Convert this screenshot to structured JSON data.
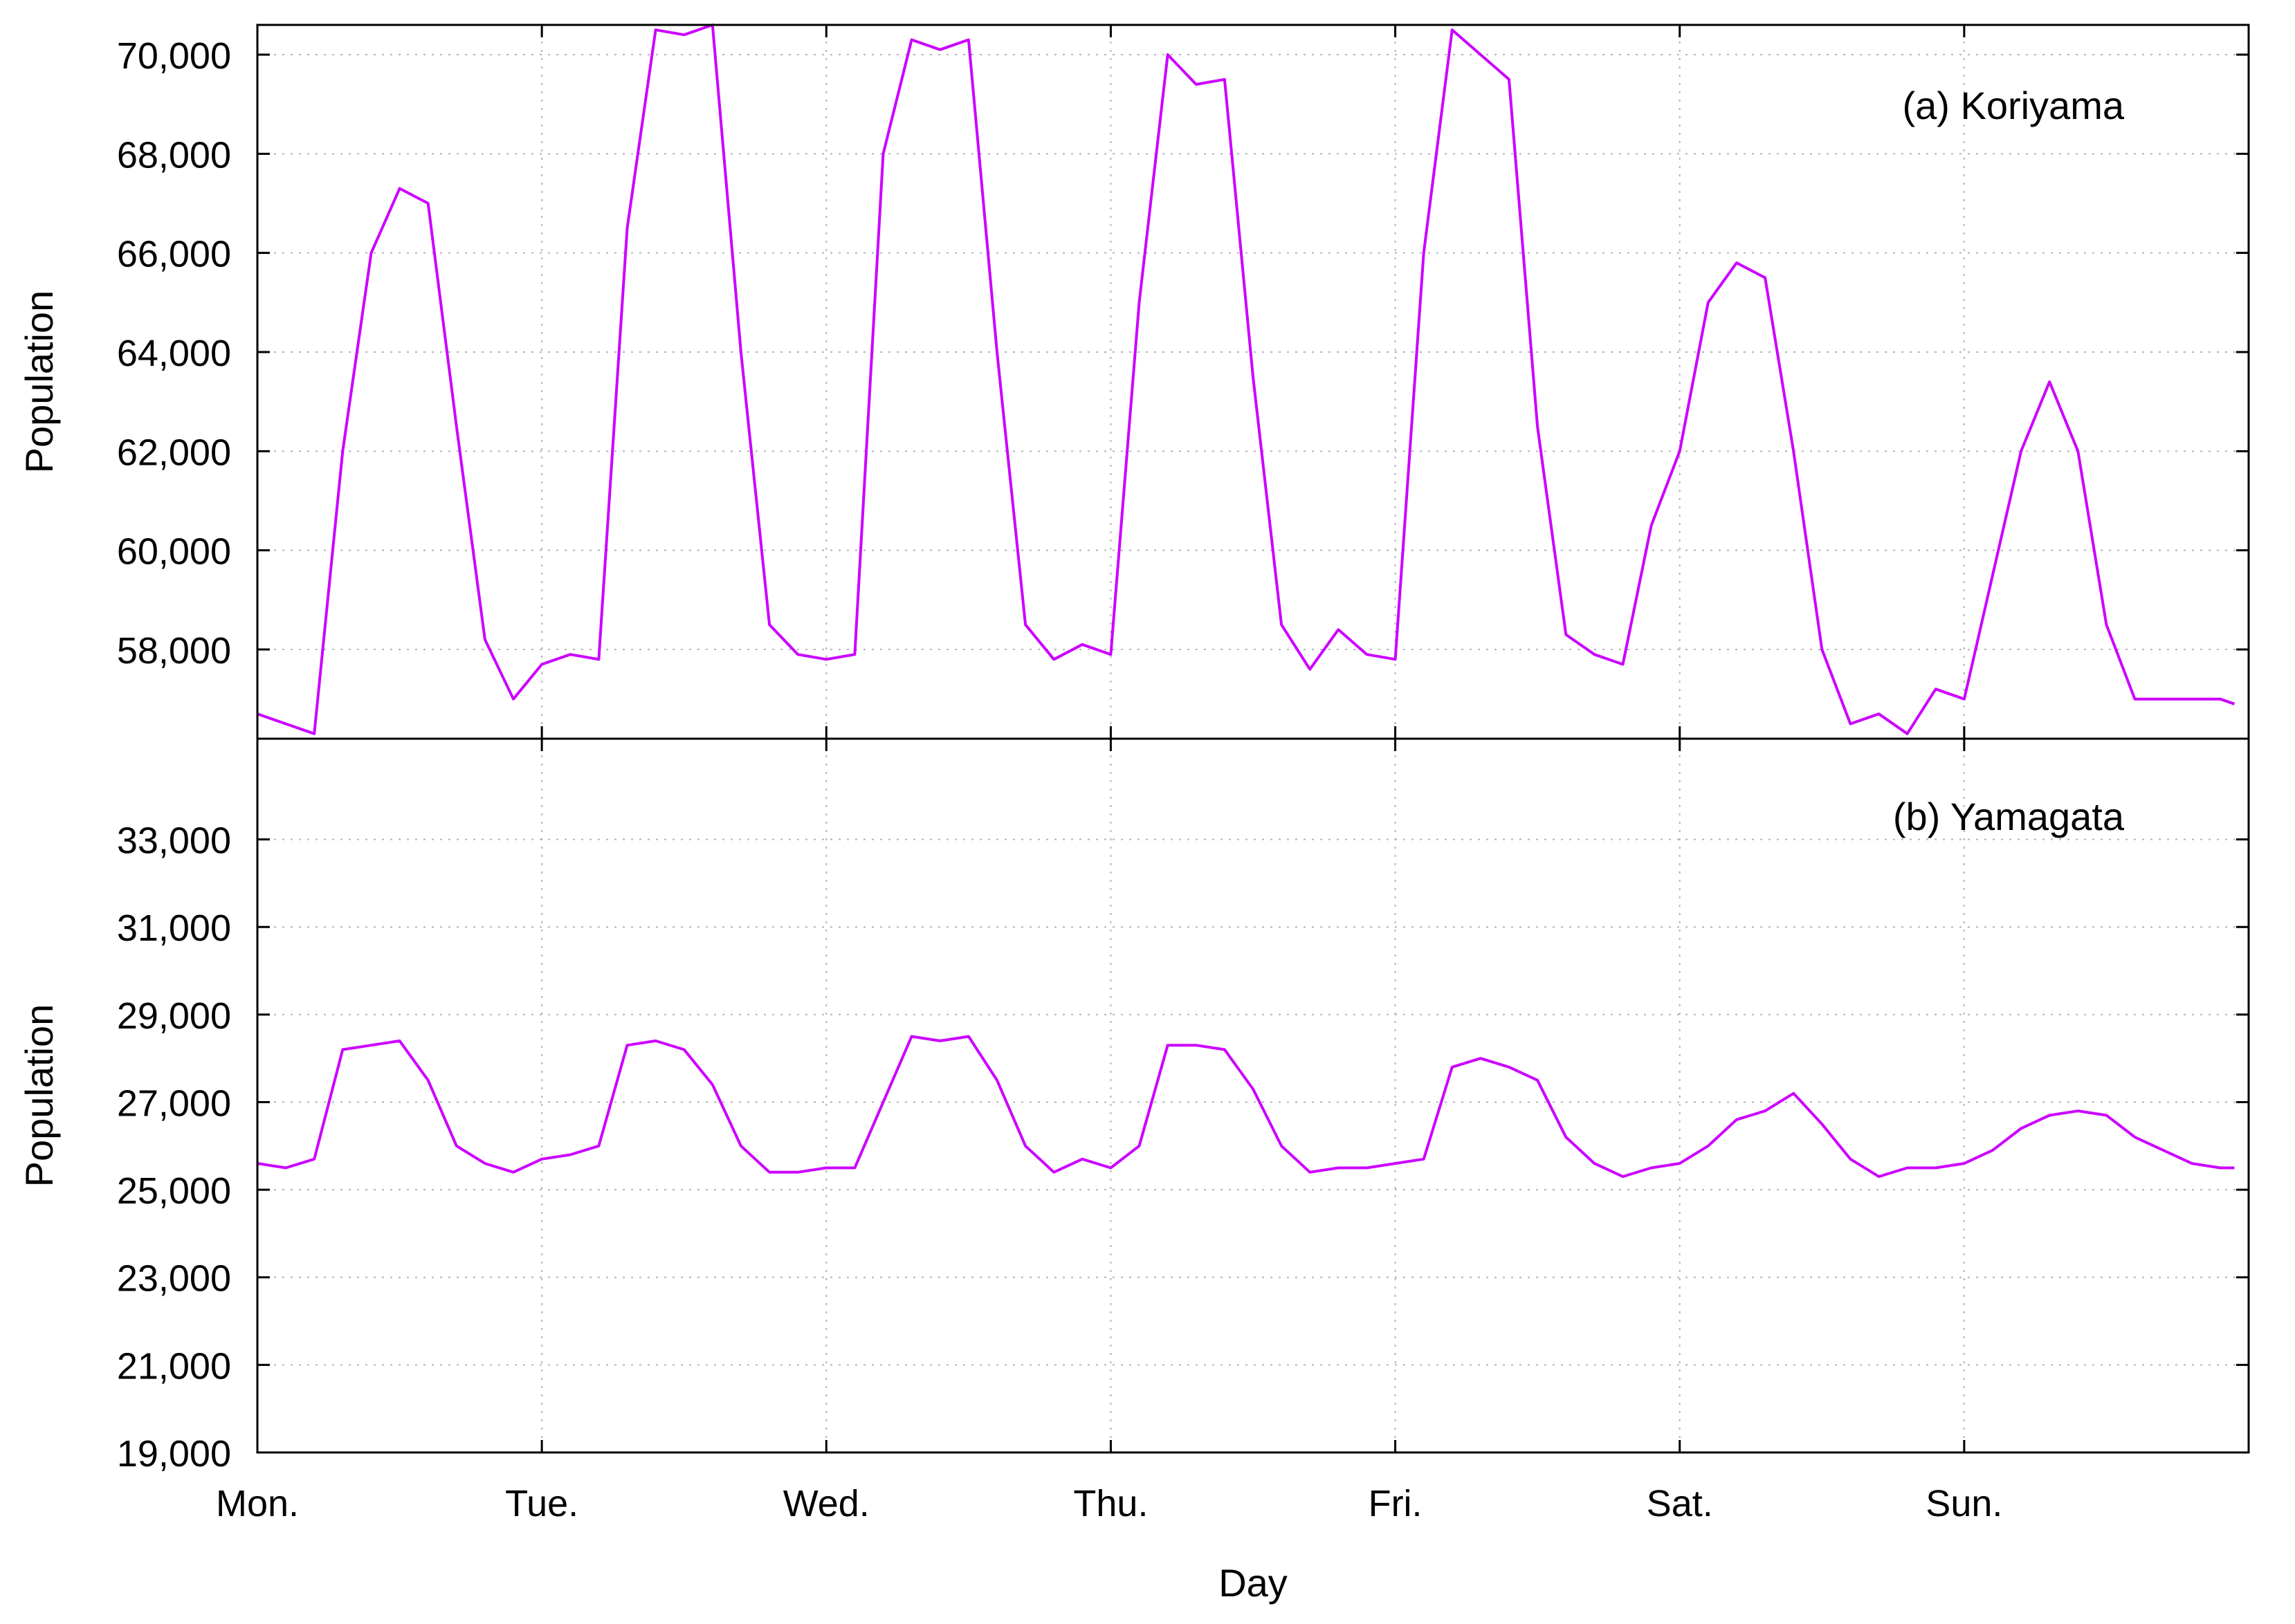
{
  "chart_data": [
    {
      "type": "line",
      "title": "(a) Koriyama",
      "xlabel": "",
      "ylabel": "Population",
      "ylim": [
        56200,
        70600
      ],
      "yticks": [
        58000,
        60000,
        62000,
        64000,
        66000,
        68000,
        70000
      ],
      "ytick_labels": [
        "58,000",
        "60,000",
        "62,000",
        "64,000",
        "66,000",
        "68,000",
        "70,000"
      ],
      "xlim": [
        0,
        7
      ],
      "x_unit": "day",
      "grid": true,
      "line_color": "#cc00ff",
      "series": [
        {
          "name": "",
          "x": [
            0,
            0.1,
            0.2,
            0.3,
            0.4,
            0.5,
            0.6,
            0.7,
            0.8,
            0.9,
            1.0,
            1.1,
            1.2,
            1.3,
            1.4,
            1.5,
            1.6,
            1.7,
            1.8,
            1.9,
            2.0,
            2.1,
            2.2,
            2.3,
            2.4,
            2.5,
            2.6,
            2.7,
            2.8,
            2.9,
            3.0,
            3.1,
            3.2,
            3.3,
            3.4,
            3.5,
            3.6,
            3.7,
            3.8,
            3.9,
            4.0,
            4.1,
            4.2,
            4.3,
            4.4,
            4.5,
            4.6,
            4.7,
            4.8,
            4.9,
            5.0,
            5.1,
            5.2,
            5.3,
            5.4,
            5.5,
            5.6,
            5.7,
            5.8,
            5.9,
            6.0,
            6.1,
            6.2,
            6.3,
            6.4,
            6.5,
            6.6,
            6.7,
            6.8,
            6.9,
            6.95
          ],
          "values": [
            56700,
            56500,
            56300,
            62000,
            66000,
            67300,
            67000,
            62500,
            58200,
            57000,
            57700,
            57900,
            57800,
            66500,
            70500,
            70400,
            70600,
            64000,
            58500,
            57900,
            57800,
            57900,
            68000,
            70300,
            70100,
            70300,
            64000,
            58500,
            57800,
            58100,
            57900,
            65000,
            70000,
            69400,
            69500,
            63500,
            58500,
            57600,
            58400,
            57900,
            57800,
            66000,
            70500,
            70000,
            69500,
            62500,
            58300,
            57900,
            57700,
            60500,
            62000,
            65000,
            65800,
            65500,
            62000,
            58000,
            56500,
            56700,
            56300,
            57200,
            57000,
            59500,
            62000,
            63400,
            62000,
            58500,
            57000,
            57000,
            57000,
            57000,
            56900
          ]
        }
      ]
    },
    {
      "type": "line",
      "title": "(b) Yamagata",
      "xlabel": "Day",
      "ylabel": "Population",
      "ylim": [
        19000,
        35300
      ],
      "yticks": [
        19000,
        21000,
        23000,
        25000,
        27000,
        29000,
        31000,
        33000
      ],
      "ytick_labels": [
        "19,000",
        "21,000",
        "23,000",
        "25,000",
        "27,000",
        "29,000",
        "31,000",
        "33,000"
      ],
      "categories": [
        "Mon.",
        "Tue.",
        "Wed.",
        "Thu.",
        "Fri.",
        "Sat.",
        "Sun."
      ],
      "xlim": [
        0,
        7
      ],
      "x_unit": "day",
      "grid": true,
      "line_color": "#cc00ff",
      "series": [
        {
          "name": "",
          "x": [
            0,
            0.1,
            0.2,
            0.3,
            0.4,
            0.5,
            0.6,
            0.7,
            0.8,
            0.9,
            1.0,
            1.1,
            1.2,
            1.3,
            1.4,
            1.5,
            1.6,
            1.7,
            1.8,
            1.9,
            2.0,
            2.1,
            2.2,
            2.3,
            2.4,
            2.5,
            2.6,
            2.7,
            2.8,
            2.9,
            3.0,
            3.1,
            3.2,
            3.3,
            3.4,
            3.5,
            3.6,
            3.7,
            3.8,
            3.9,
            4.0,
            4.1,
            4.2,
            4.3,
            4.4,
            4.5,
            4.6,
            4.7,
            4.8,
            4.9,
            5.0,
            5.1,
            5.2,
            5.3,
            5.4,
            5.5,
            5.6,
            5.7,
            5.8,
            5.9,
            6.0,
            6.1,
            6.2,
            6.3,
            6.4,
            6.5,
            6.6,
            6.7,
            6.8,
            6.9,
            6.95
          ],
          "values": [
            25600,
            25500,
            25700,
            28200,
            28300,
            28400,
            27500,
            26000,
            25600,
            25400,
            25700,
            25800,
            26000,
            28300,
            28400,
            28200,
            27400,
            26000,
            25400,
            25400,
            25500,
            25500,
            27000,
            28500,
            28400,
            28500,
            27500,
            26000,
            25400,
            25700,
            25500,
            26000,
            28300,
            28300,
            28200,
            27300,
            26000,
            25400,
            25500,
            25500,
            25600,
            25700,
            27800,
            28000,
            27800,
            27500,
            26200,
            25600,
            25300,
            25500,
            25600,
            26000,
            26600,
            26800,
            27200,
            26500,
            25700,
            25300,
            25500,
            25500,
            25600,
            25900,
            26400,
            26700,
            26800,
            26700,
            26200,
            25900,
            25600,
            25500,
            25500
          ]
        }
      ]
    }
  ]
}
